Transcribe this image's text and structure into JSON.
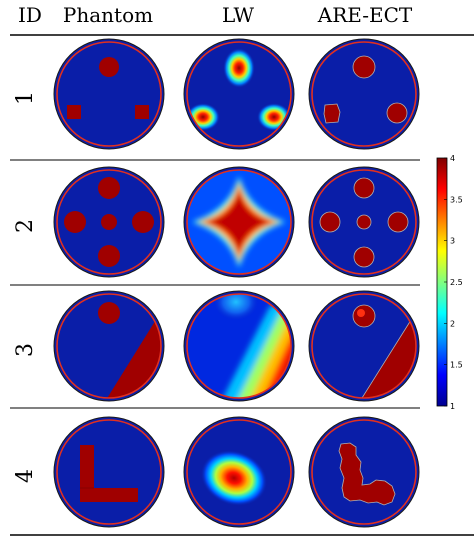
{
  "header": {
    "id": "ID",
    "phantom": "Phantom",
    "lw": "LW",
    "are": "ARE-ECT"
  },
  "rows": [
    {
      "id": "1"
    },
    {
      "id": "2"
    },
    {
      "id": "3"
    },
    {
      "id": "4"
    }
  ],
  "colorbar": {
    "ticks": [
      "4",
      "3.5",
      "3",
      "2.5",
      "2",
      "1.5",
      "1"
    ],
    "values": [
      4,
      3.5,
      3,
      2.5,
      2,
      1.5,
      1
    ],
    "min": 1,
    "max": 4
  },
  "colors": {
    "background": "#0a1ea8",
    "ring_red": "#e03020",
    "inclusion": "#a00000",
    "edge_grey": "#b0b0b0",
    "line": "#000000"
  }
}
